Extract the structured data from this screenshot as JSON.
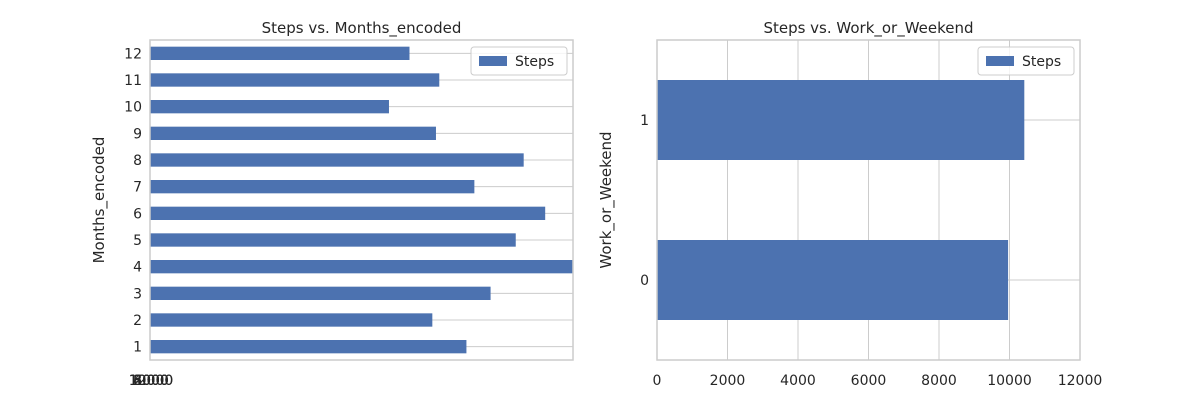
{
  "figure": {
    "background": "#ffffff",
    "bar_color": "#4c72b0",
    "grid_color": "#cccccc",
    "frame_color": "#cccccc"
  },
  "chart_data": [
    {
      "type": "bar",
      "orientation": "horizontal",
      "title": "Steps vs. Months_encoded",
      "xlabel": "",
      "ylabel": "Months_encoded",
      "categories": [
        "1",
        "2",
        "3",
        "4",
        "5",
        "6",
        "7",
        "8",
        "9",
        "10",
        "11",
        "12"
      ],
      "series": [
        {
          "name": "Steps",
          "values": [
            9560,
            8530,
            10290,
            12780,
            11050,
            11940,
            9800,
            11290,
            8640,
            7220,
            8740,
            7840
          ]
        }
      ],
      "xlim": [
        0,
        12780
      ],
      "x_tick_labels": [
        "0",
        "2000",
        "4000",
        "6000",
        "8000",
        "10000",
        "12000"
      ],
      "grid": true,
      "legend": {
        "position": "top-right",
        "entries": [
          "Steps"
        ]
      }
    },
    {
      "type": "bar",
      "orientation": "horizontal",
      "title": "Steps vs. Work_or_Weekend",
      "xlabel": "",
      "ylabel": "Work_or_Weekend",
      "categories": [
        "0",
        "1"
      ],
      "series": [
        {
          "name": "Steps",
          "values": [
            9960,
            10420
          ]
        }
      ],
      "xlim": [
        0,
        12000
      ],
      "x_ticks": [
        0,
        2000,
        4000,
        6000,
        8000,
        10000,
        12000
      ],
      "x_tick_labels": [
        "0",
        "2000",
        "4000",
        "6000",
        "8000",
        "10000",
        "12000"
      ],
      "grid": true,
      "legend": {
        "position": "top-right",
        "entries": [
          "Steps"
        ]
      }
    }
  ]
}
